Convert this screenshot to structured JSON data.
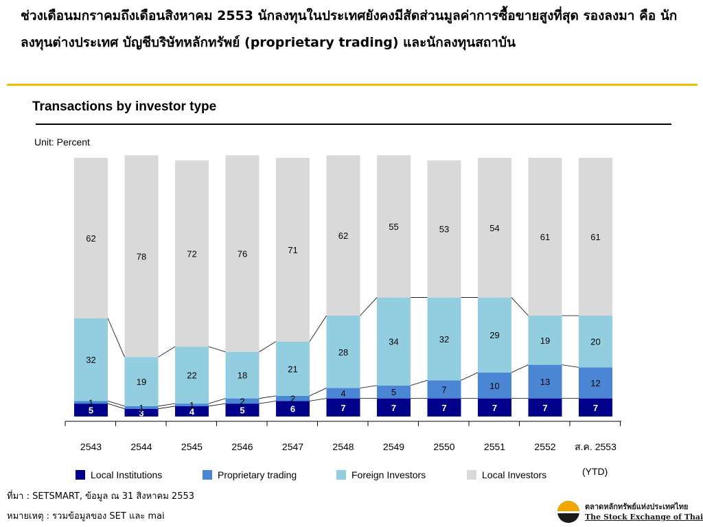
{
  "headline": "ช่วงเดือนมกราคมถึงเดือนสิงหาคม 2553 นักลงทุนในประเทศยังคงมีสัดส่วนมูลค่าการซื้อขายสูงที่สุด รองลงมา คือ นักลงทุนต่างประเทศ บัญชีบริษัทหลักทรัพย์ (proprietary trading) และนักลงทุนสถาบัน",
  "unit_label": "Unit: Percent",
  "ytd_label": "(YTD)",
  "source": "ที่มา : SETSMART, ข้อมูล ณ 31 สิงหาคม 2553",
  "note": "หมายเหตุ : รวมข้อมูลของ SET และ mai",
  "logo": {
    "text_th": "ตลาดหลักทรัพย์แห่งประเทศไทย",
    "text_en": "The Stock Exchange of Thailand"
  },
  "colors": {
    "local_institutions": "#00008b",
    "proprietary_trading": "#4a86d4",
    "foreign_investors": "#92cde0",
    "local_investors": "#d9d9d9",
    "accent_rule": "#f0c000"
  },
  "chart_data": {
    "type": "bar",
    "stacked": true,
    "percent": true,
    "title": "Transactions by investor type",
    "ylabel": "Unit: Percent",
    "ylim": [
      0,
      100
    ],
    "categories": [
      "2543",
      "2544",
      "2545",
      "2546",
      "2547",
      "2548",
      "2549",
      "2550",
      "2551",
      "2552",
      "ส.ค. 2553"
    ],
    "series": [
      {
        "name": "Local Institutions",
        "values": [
          5,
          3,
          4,
          5,
          6,
          7,
          7,
          7,
          7,
          7,
          7
        ]
      },
      {
        "name": "Proprietary trading",
        "values": [
          1,
          1,
          1,
          2,
          2,
          4,
          5,
          7,
          10,
          13,
          12
        ]
      },
      {
        "name": "Foreign Investors",
        "values": [
          32,
          19,
          22,
          18,
          21,
          28,
          34,
          32,
          29,
          19,
          20
        ]
      },
      {
        "name": "Local Investors",
        "values": [
          62,
          78,
          72,
          76,
          71,
          62,
          55,
          53,
          54,
          61,
          61
        ]
      }
    ],
    "legend_position": "bottom",
    "grid": false
  }
}
